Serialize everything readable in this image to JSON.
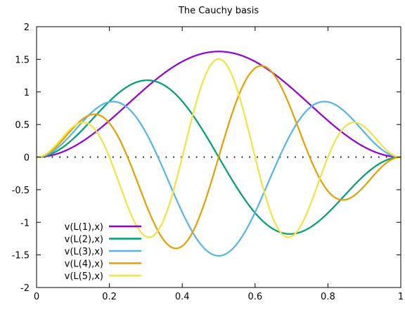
{
  "chart_data": {
    "type": "line",
    "title": "The Cauchy basis",
    "xlabel": "",
    "ylabel": "",
    "xlim": [
      0,
      1
    ],
    "ylim": [
      -2,
      2
    ],
    "x_ticks": [
      0,
      0.2,
      0.4,
      0.6,
      0.8,
      1
    ],
    "x_tick_labels": [
      "0",
      "0.2",
      "0.4",
      "0.6",
      "0.8",
      "1"
    ],
    "y_ticks": [
      -2,
      -1.5,
      -1,
      -0.5,
      0,
      0.5,
      1,
      1.5,
      2
    ],
    "y_tick_labels": [
      "-2",
      "-1.5",
      "-1",
      "-0.5",
      "0",
      "0.5",
      "1",
      "1.5",
      "2"
    ],
    "zero_line": "dotted",
    "legend_position": "bottom-left",
    "series": [
      {
        "name": "v(L(1),x)",
        "color": "#9400d3",
        "k": 1
      },
      {
        "name": "v(L(2),x)",
        "color": "#009e73",
        "k": 2
      },
      {
        "name": "v(L(3),x)",
        "color": "#56b4e9",
        "k": 3
      },
      {
        "name": "v(L(4),x)",
        "color": "#e69f00",
        "k": 4
      },
      {
        "name": "v(L(5),x)",
        "color": "#f0e442",
        "k": 5
      }
    ]
  }
}
